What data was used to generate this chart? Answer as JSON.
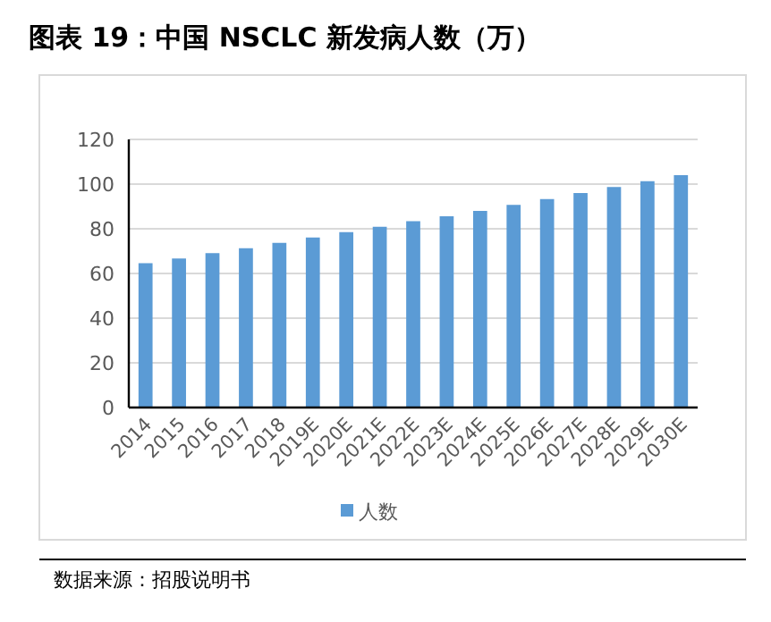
{
  "chart_data": {
    "type": "bar",
    "title": "图表 19：中国 NSCLC 新发病人数（万）",
    "categories": [
      "2014",
      "2015",
      "2016",
      "2017",
      "2018",
      "2019E",
      "2020E",
      "2021E",
      "2022E",
      "2023E",
      "2024E",
      "2025E",
      "2026E",
      "2027E",
      "2028E",
      "2029E",
      "2030E"
    ],
    "series": [
      {
        "name": "人数",
        "color": "#5b9bd5",
        "values": [
          64.6,
          66.7,
          69.1,
          71.3,
          73.7,
          76.1,
          78.5,
          80.9,
          83.4,
          85.6,
          88,
          90.7,
          93.3,
          96,
          98.7,
          101.3,
          104
        ]
      }
    ],
    "ylim": [
      0,
      120
    ],
    "yticks": [
      0,
      20,
      40,
      60,
      80,
      100,
      120
    ],
    "grid": "y",
    "legend": "bottom",
    "annotations": [
      "数据来源：招股说明书"
    ]
  }
}
